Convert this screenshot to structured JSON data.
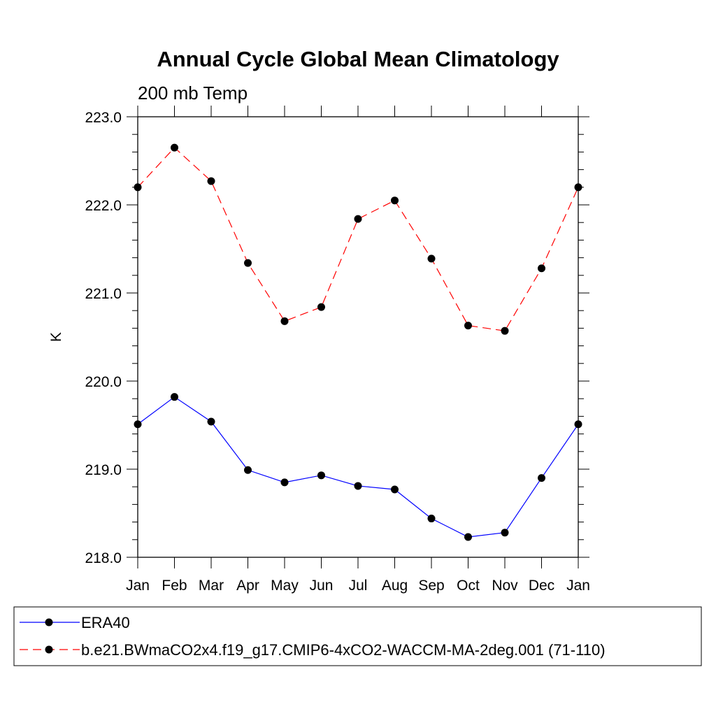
{
  "chart_data": {
    "type": "line",
    "title": "Annual Cycle Global Mean Climatology",
    "subtitle": "200 mb Temp",
    "xlabel": "",
    "ylabel": "K",
    "categories": [
      "Jan",
      "Feb",
      "Mar",
      "Apr",
      "May",
      "Jun",
      "Jul",
      "Aug",
      "Sep",
      "Oct",
      "Nov",
      "Dec",
      "Jan"
    ],
    "ylim": [
      218.0,
      223.0
    ],
    "yticks": [
      218.0,
      219.0,
      220.0,
      221.0,
      222.0,
      223.0
    ],
    "ytick_labels": [
      "218.0",
      "219.0",
      "220.0",
      "221.0",
      "222.0",
      "223.0"
    ],
    "grid": false,
    "legend_position": "bottom",
    "series": [
      {
        "name": "ERA40",
        "color": "#0000ff",
        "line_style": "solid",
        "marker": "filled-circle",
        "values": [
          219.51,
          219.82,
          219.54,
          218.99,
          218.85,
          218.93,
          218.81,
          218.77,
          218.44,
          218.23,
          218.28,
          218.9,
          219.51
        ]
      },
      {
        "name": "b.e21.BWmaCO2x4.f19_g17.CMIP6-4xCO2-WACCM-MA-2deg.001 (71-110)",
        "color": "#ff0000",
        "line_style": "dashed",
        "marker": "filled-circle",
        "values": [
          222.2,
          222.65,
          222.27,
          221.34,
          220.68,
          220.84,
          221.84,
          222.05,
          221.39,
          220.63,
          220.57,
          221.28,
          222.2
        ]
      }
    ]
  }
}
